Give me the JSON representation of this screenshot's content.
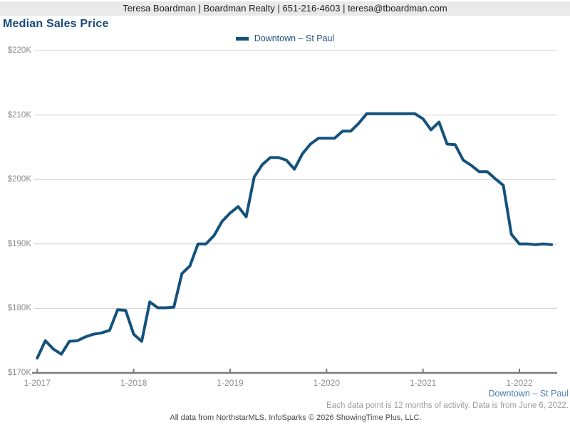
{
  "header": {
    "contact_line": "Teresa Boardman | Boardman Realty | 651-216-4603 | teresa@tboardman.com"
  },
  "title": "Median Sales Price",
  "legend": {
    "label": "Downtown – St Paul"
  },
  "footer": {
    "series_label": "Downtown – St Paul",
    "note": "Each data point is 12 months of activity. Data is from June 6, 2022.",
    "attribution": "All data from NorthstarMLS. InfoSparks © 2026 ShowingTime Plus, LLC."
  },
  "colors": {
    "line": "#14517c",
    "title": "#17497b",
    "legend_text": "#1d4f7e",
    "footer_series": "#4a7baf",
    "gridline": "#cfcfcf",
    "axis": "#7a7a7a",
    "tick_text": "#8c8c8c",
    "banner_bg": "#e9e9e9"
  },
  "chart_data": {
    "type": "line",
    "title": "Median Sales Price",
    "unit": "USD thousands",
    "legend_position": "top-center",
    "grid": "horizontal",
    "ylim": [
      170,
      220
    ],
    "y_tick_values": [
      220,
      210,
      200,
      190,
      180,
      170
    ],
    "y_tick_labels": [
      "$220K",
      "$210K",
      "$200K",
      "$190K",
      "$180K",
      "$170K"
    ],
    "x_tick_month_indices": [
      0,
      12,
      24,
      36,
      48,
      60
    ],
    "x_tick_labels": [
      "1-2017",
      "1-2018",
      "1-2019",
      "1-2020",
      "1-2021",
      "1-2022"
    ],
    "x": [
      "1-2017",
      "2-2017",
      "3-2017",
      "4-2017",
      "5-2017",
      "6-2017",
      "7-2017",
      "8-2017",
      "9-2017",
      "10-2017",
      "11-2017",
      "12-2017",
      "1-2018",
      "2-2018",
      "3-2018",
      "4-2018",
      "5-2018",
      "6-2018",
      "7-2018",
      "8-2018",
      "9-2018",
      "10-2018",
      "11-2018",
      "12-2018",
      "1-2019",
      "2-2019",
      "3-2019",
      "4-2019",
      "5-2019",
      "6-2019",
      "7-2019",
      "8-2019",
      "9-2019",
      "10-2019",
      "11-2019",
      "12-2019",
      "1-2020",
      "2-2020",
      "3-2020",
      "4-2020",
      "5-2020",
      "6-2020",
      "7-2020",
      "8-2020",
      "9-2020",
      "10-2020",
      "11-2020",
      "12-2020",
      "1-2021",
      "2-2021",
      "3-2021",
      "4-2021",
      "5-2021",
      "6-2021",
      "7-2021",
      "8-2021",
      "9-2021",
      "10-2021",
      "11-2021",
      "12-2021",
      "1-2022",
      "2-2022",
      "3-2022",
      "4-2022",
      "5-2022"
    ],
    "series": [
      {
        "name": "Downtown – St Paul",
        "color": "#14517c",
        "values": [
          172.3,
          175.0,
          173.7,
          172.9,
          174.9,
          175.0,
          175.6,
          176.0,
          176.2,
          176.6,
          179.8,
          179.7,
          176.0,
          174.9,
          181.0,
          180.1,
          180.1,
          180.2,
          185.4,
          186.6,
          190.0,
          190.0,
          191.3,
          193.5,
          194.8,
          195.8,
          194.2,
          200.4,
          202.3,
          203.4,
          203.4,
          203.0,
          201.6,
          204.0,
          205.5,
          206.4,
          206.4,
          206.4,
          207.5,
          207.5,
          208.7,
          210.2,
          210.2,
          210.2,
          210.2,
          210.2,
          210.2,
          210.2,
          209.4,
          207.7,
          208.9,
          205.5,
          205.4,
          203.0,
          202.2,
          201.2,
          201.2,
          200.1,
          199.1,
          191.5,
          190.0,
          190.0,
          189.9,
          190.0,
          189.9
        ]
      }
    ]
  }
}
